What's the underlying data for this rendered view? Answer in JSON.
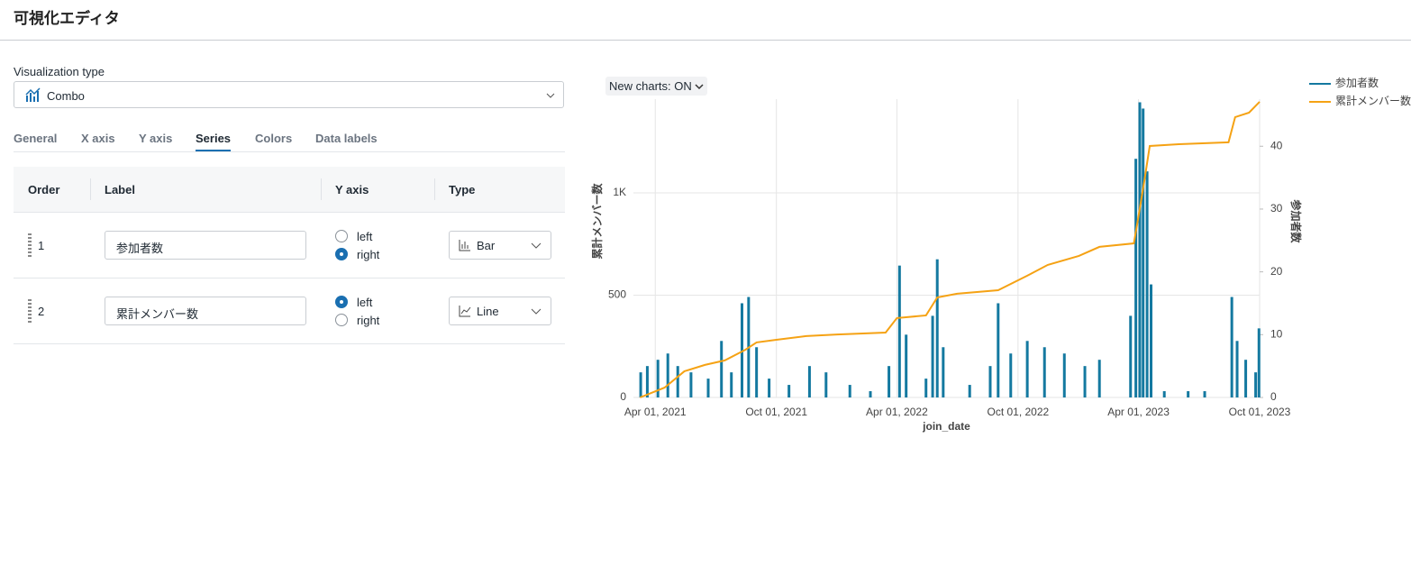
{
  "header": {
    "title": "可視化エディタ"
  },
  "editor": {
    "visualization_type_label": "Visualization type",
    "visualization_type": "Combo",
    "tabs": [
      {
        "label": "General"
      },
      {
        "label": "X axis"
      },
      {
        "label": "Y axis"
      },
      {
        "label": "Series",
        "active": true
      },
      {
        "label": "Colors"
      },
      {
        "label": "Data labels"
      }
    ],
    "series_table": {
      "columns": [
        "Order",
        "Label",
        "Y axis",
        "Type"
      ],
      "rows": [
        {
          "order": 1,
          "label": "参加者数",
          "y_axis_options": [
            "left",
            "right"
          ],
          "y_axis": "right",
          "type": "Bar"
        },
        {
          "order": 2,
          "label": "累計メンバー数",
          "y_axis_options": [
            "left",
            "right"
          ],
          "y_axis": "left",
          "type": "Line"
        }
      ]
    }
  },
  "new_charts_toggle": "New charts: ON",
  "chart_data": {
    "type": "combo",
    "x_label": "join_date",
    "y_label": "累計メンバー数",
    "y2_label": "参加者数",
    "xlim": [
      "2021-02-27",
      "2023-10-01"
    ],
    "xticks": [
      {
        "value": "2021-04-01",
        "label": "Apr 01, 2021"
      },
      {
        "value": "2021-10-01",
        "label": "Oct 01, 2021"
      },
      {
        "value": "2022-04-01",
        "label": "Apr 01, 2022"
      },
      {
        "value": "2022-10-01",
        "label": "Oct 01, 2022"
      },
      {
        "value": "2023-04-01",
        "label": "Apr 01, 2023"
      },
      {
        "value": "2023-10-01",
        "label": "Oct 01, 2023"
      }
    ],
    "ylim": [
      0,
      1458
    ],
    "yticks": [
      0,
      500,
      {
        "value": 1000,
        "label": "1K"
      }
    ],
    "y2lim": [
      0,
      47.5
    ],
    "y2ticks": [
      0,
      10,
      20,
      30,
      40
    ],
    "grid": true,
    "legend": "top-right",
    "series": [
      {
        "name": "参加者数",
        "type": "bar",
        "axis": "y2",
        "color": "#1479a0",
        "x": [
          "2021-03-10",
          "2021-03-20",
          "2021-04-05",
          "2021-04-20",
          "2021-05-05",
          "2021-05-25",
          "2021-06-20",
          "2021-07-10",
          "2021-07-25",
          "2021-08-10",
          "2021-08-20",
          "2021-09-01",
          "2021-09-20",
          "2021-10-20",
          "2021-11-20",
          "2021-12-15",
          "2022-01-20",
          "2022-02-20",
          "2022-03-20",
          "2022-04-05",
          "2022-04-15",
          "2022-05-15",
          "2022-05-25",
          "2022-06-01",
          "2022-06-10",
          "2022-07-20",
          "2022-08-20",
          "2022-09-01",
          "2022-09-20",
          "2022-10-15",
          "2022-11-10",
          "2022-12-10",
          "2023-01-10",
          "2023-02-01",
          "2023-03-20",
          "2023-03-28",
          "2023-04-03",
          "2023-04-08",
          "2023-04-14",
          "2023-04-20",
          "2023-05-10",
          "2023-06-15",
          "2023-07-10",
          "2023-08-20",
          "2023-08-28",
          "2023-09-10",
          "2023-09-25",
          "2023-09-30"
        ],
        "values": [
          4,
          5,
          6,
          7,
          5,
          4,
          3,
          9,
          4,
          15,
          16,
          8,
          3,
          2,
          5,
          4,
          2,
          1,
          5,
          21,
          10,
          3,
          13,
          22,
          8,
          2,
          5,
          15,
          7,
          9,
          8,
          7,
          5,
          6,
          13,
          38,
          47,
          46,
          36,
          18,
          1,
          1,
          1,
          16,
          9,
          6,
          4,
          11
        ]
      },
      {
        "name": "累計メンバー数",
        "type": "line",
        "color": "#f5a214",
        "x": [
          "2021-03-09",
          "2021-04-15",
          "2021-05-15",
          "2021-06-15",
          "2021-07-15",
          "2021-08-15",
          "2021-09-01",
          "2021-10-01",
          "2021-11-15",
          "2022-01-01",
          "2022-03-15",
          "2022-04-01",
          "2022-05-15",
          "2022-06-01",
          "2022-07-01",
          "2022-09-01",
          "2022-10-15",
          "2022-11-15",
          "2023-01-01",
          "2023-02-01",
          "2023-03-25",
          "2023-04-01",
          "2023-04-10",
          "2023-04-18",
          "2023-06-01",
          "2023-08-15",
          "2023-08-25",
          "2023-09-15",
          "2023-10-01"
        ],
        "values": [
          0,
          48,
          128,
          159,
          181,
          233,
          269,
          282,
          300,
          308,
          317,
          388,
          401,
          489,
          507,
          524,
          595,
          648,
          692,
          736,
          753,
          885,
          1062,
          1229,
          1238,
          1247,
          1370,
          1392,
          1445
        ]
      }
    ]
  }
}
